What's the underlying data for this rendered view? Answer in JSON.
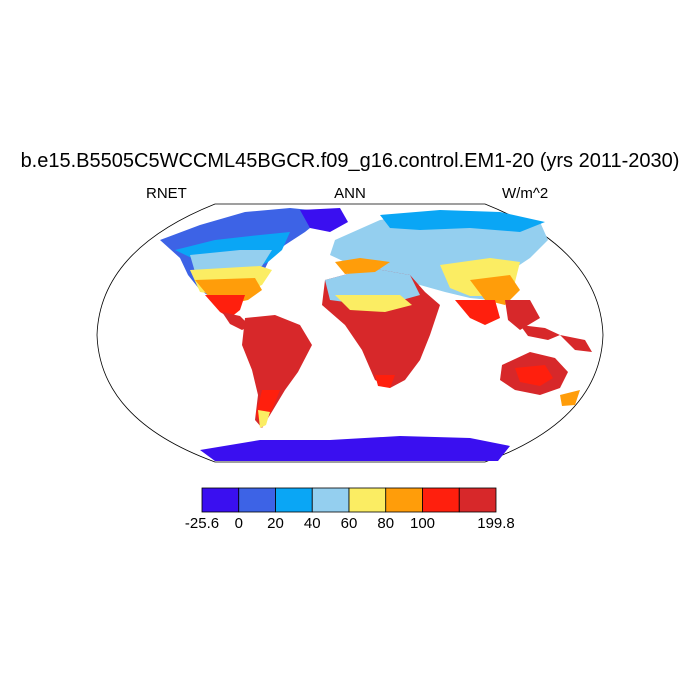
{
  "title": "b.e15.B5505C5WCCML45BGCR.f09_g16.control.EM1-20 (yrs 2011-2030)",
  "left_label": "RNET",
  "center_label": "ANN",
  "right_label": "W/m^2",
  "colorbar": {
    "colors": [
      "#3a0ff0",
      "#3d63e6",
      "#0aa6f5",
      "#94cfef",
      "#fbed63",
      "#ff9d0a",
      "#ff1f0d",
      "#d7282a"
    ],
    "labels": [
      "-25.6",
      "0",
      "20",
      "40",
      "60",
      "80",
      "100",
      "199.8"
    ]
  },
  "map_data": {
    "projection": "Robinson",
    "variable": "RNET",
    "units": "W/m^2",
    "period": "ANN"
  }
}
